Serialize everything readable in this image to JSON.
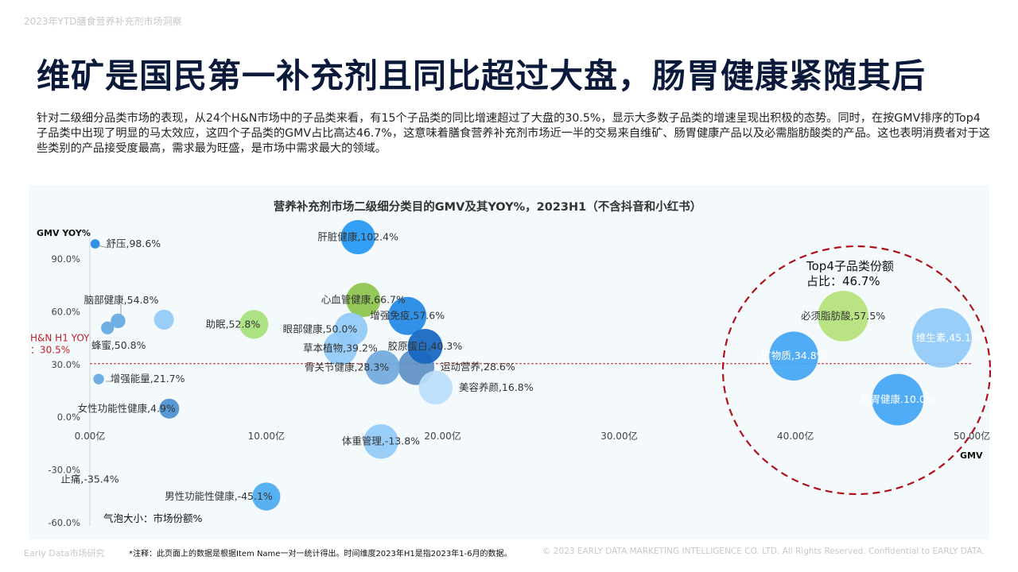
{
  "header": {
    "top_note": "2023年YTD膳食营养补充剂市场洞察",
    "headline": "维矿是国民第一补充剂且同比超过大盘，肠胃健康紧随其后",
    "intro": "针对二级细分品类市场的表现，从24个H&N市场中的子品类来看，有15个子品类的同比增速超过了大盘的30.5%，显示大多数子品类的增速呈现出积极的态势。同时，在按GMV排序的Top4子品类中出现了明显的马太效应，这四个子品类的GMV占比高达46.7%，这意味着膳食营养补充剂市场近一半的交易来自维矿、肠胃健康产品以及必需脂肪酸类的产品。这也表明消费者对于这些类别的产品接受度最高，需求最为旺盛，是市场中需求最大的领域。"
  },
  "chart_data": {
    "type": "bubble",
    "title": "营养补充剂市场二级细分类目的GMV及其YOY%，2023H1（不含抖音和小红书）",
    "xlabel": "GMV",
    "ylabel": "GMV YOY%",
    "xlim": [
      0,
      50
    ],
    "ylim": [
      -60,
      100
    ],
    "x_ticks": [
      {
        "value": 0,
        "label": "0.00亿"
      },
      {
        "value": 10,
        "label": "10.00亿"
      },
      {
        "value": 20,
        "label": "20.00亿"
      },
      {
        "value": 30,
        "label": "30.00亿"
      },
      {
        "value": 40,
        "label": "40.00亿"
      },
      {
        "value": 50,
        "label": "50.00亿"
      }
    ],
    "y_ticks": [
      {
        "value": 90,
        "label": "90.0%"
      },
      {
        "value": 60,
        "label": "60.0%"
      },
      {
        "value": 30,
        "label": "30.0%"
      },
      {
        "value": 0,
        "label": "0.0%"
      },
      {
        "value": -30,
        "label": "-30.0%"
      },
      {
        "value": -60,
        "label": "-60.0%"
      }
    ],
    "reference_line": {
      "value": 30.5,
      "label_1": "H&N H1 YOY",
      "label_2": "：30.5%",
      "color": "#c0202a"
    },
    "size_note": "气泡大小：市场份额%",
    "top4_annotation": {
      "line_1": "Top4子品类份额",
      "line_2": "占比：46.7%"
    },
    "points": [
      {
        "label": "舒压,98.6%",
        "x": 0.3,
        "y": 98.6,
        "size": 0.2,
        "color": "#1e88e5",
        "label_pos": "right"
      },
      {
        "label": "",
        "x": 4.2,
        "y": 55.5,
        "size": 1.5,
        "color": "#90caf9",
        "label_pos": "none"
      },
      {
        "label": "脑部健康,54.8%",
        "x": 1.6,
        "y": 54.8,
        "size": 0.7,
        "color": "#64a8e2",
        "label_pos": "above-left"
      },
      {
        "label": "蜂蜜,50.8%",
        "x": 1.0,
        "y": 50.8,
        "size": 0.5,
        "color": "#64a8e2",
        "label_pos": "below"
      },
      {
        "label": "增强能量,21.7%",
        "x": 0.5,
        "y": 21.7,
        "size": 0.3,
        "color": "#64a8e2",
        "label_pos": "right"
      },
      {
        "label": "女性功能性健康,4.9%",
        "x": 4.5,
        "y": 4.9,
        "size": 1.5,
        "color": "#4a8fd0",
        "label_pos": "left"
      },
      {
        "label": "止痛,-35.4%",
        "x": 0.0,
        "y": -35.4,
        "size": 0.0,
        "color": "#64a8e2",
        "label_pos": "center"
      },
      {
        "label": "助眠,52.8%",
        "x": 9.3,
        "y": 52.8,
        "size": 3.5,
        "color": "#a6e07a",
        "label_pos": "left"
      },
      {
        "label": "男性功能性健康,-45.1%",
        "x": 10.0,
        "y": -45.1,
        "size": 3.3,
        "color": "#4aaaf0",
        "label_pos": "left"
      },
      {
        "label": "肝脏健康,102.4%",
        "x": 15.2,
        "y": 102.4,
        "size": 5.2,
        "color": "#2196f3",
        "label_pos": "center"
      },
      {
        "label": "增强免疫,57.6%",
        "x": 18.0,
        "y": 57.6,
        "size": 6.5,
        "color": "#1e88e5",
        "label_pos": "center"
      },
      {
        "label": "心血管健康,66.7%",
        "x": 15.5,
        "y": 66.7,
        "size": 5.2,
        "color": "#8bc34a",
        "label_pos": "center"
      },
      {
        "label": "眼部健康,50.0%",
        "x": 14.8,
        "y": 50.0,
        "size": 4.8,
        "color": "#90caf9",
        "label_pos": "left"
      },
      {
        "label": "胶原蛋白,40.3%",
        "x": 19.0,
        "y": 40.3,
        "size": 5.4,
        "color": "#1565c0",
        "label_pos": "center"
      },
      {
        "label": "草本植物,39.2%",
        "x": 14.2,
        "y": 39.2,
        "size": 5.0,
        "color": "#90caf9",
        "label_pos": "center"
      },
      {
        "label": "运动营养,28.6%",
        "x": 18.5,
        "y": 28.6,
        "size": 5.8,
        "color": "#5c8fc4",
        "label_pos": "right"
      },
      {
        "label": "骨关节健康,28.3%",
        "x": 16.6,
        "y": 28.3,
        "size": 5.2,
        "color": "#6fa8dc",
        "label_pos": "left"
      },
      {
        "label": "美容养颜,16.8%",
        "x": 19.6,
        "y": 16.8,
        "size": 5.0,
        "color": "#bbdefb",
        "label_pos": "right"
      },
      {
        "label": "体重管理,-13.8%",
        "x": 16.5,
        "y": -13.8,
        "size": 5.3,
        "color": "#90caf9",
        "label_pos": "center"
      },
      {
        "label": "必须脂肪酸,57.5%",
        "x": 42.7,
        "y": 57.5,
        "size": 12.0,
        "color": "#b4e27a",
        "label_pos": "center"
      },
      {
        "label": "维生素,45.1%",
        "x": 48.3,
        "y": 45.1,
        "size": 17.0,
        "color": "#90caf9",
        "label_pos": "center"
      },
      {
        "label": "矿物质,34.8%",
        "x": 39.9,
        "y": 34.8,
        "size": 11.2,
        "color": "#42a5f5",
        "label_pos": "center"
      },
      {
        "label": "肠胃健康.10.0%",
        "x": 45.8,
        "y": 10.0,
        "size": 12.5,
        "color": "#42a5f5",
        "label_pos": "center"
      }
    ]
  },
  "footer": {
    "left": "Early Data市场研究",
    "note": "*注释：此页面上的数据是根据Item Name一对一统计得出。时间维度2023年H1是指2023年1-6月的数据。",
    "right": "© 2023 EARLY DATA MARKETING INTELLIGENCE CO. LTD. All Rights Reserved. Confidential to EARLY DATA."
  }
}
